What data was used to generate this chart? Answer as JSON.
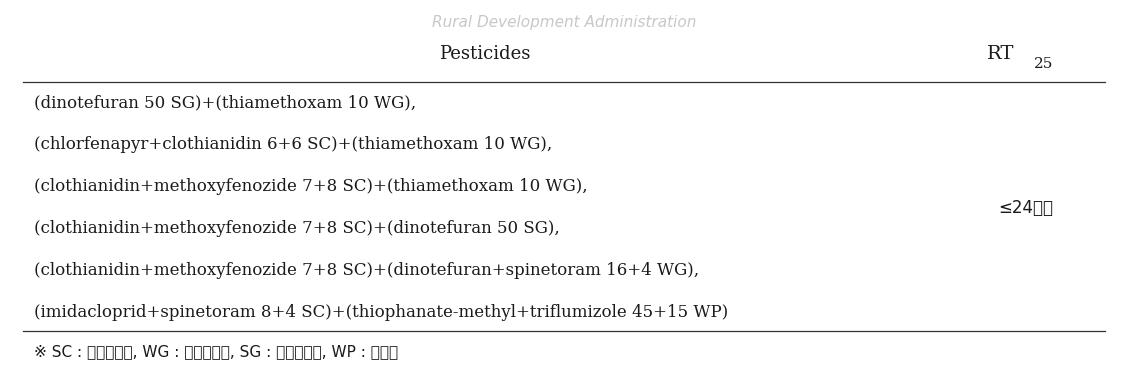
{
  "header_col1": "Pesticides",
  "rt_main": "RT",
  "rt_sub": "25",
  "pesticide_lines": [
    "(dinotefuran 50 SG)+(thiamethoxam 10 WG),",
    "(chlorfenapyr+clothianidin 6+6 SC)+(thiamethoxam 10 WG),",
    "(clothianidin+methoxyfenozide 7+8 SC)+(thiamethoxam 10 WG),",
    "(clothianidin+methoxyfenozide 7+8 SC)+(dinotefuran 50 SG),",
    "(clothianidin+methoxyfenozide 7+8 SC)+(dinotefuran+spinetoram 16+4 WG),",
    "(imidacloprid+spinetoram 8+4 SC)+(thiophanate-methyl+triflumizole 45+15 WP)"
  ],
  "rt_value": "≤24시간",
  "footnote": "※ SC : 액상수화제, WG : 입상수화제, SG : 입상수용제, WP : 수화제",
  "watermark_text": "Rural Development Administration",
  "bg_color": "#ffffff",
  "text_color": "#1a1a1a",
  "line_color": "#333333",
  "font_size_header": 13,
  "font_size_body": 12,
  "font_size_footnote": 11,
  "font_size_watermark": 11,
  "watermark_color": "#c8c8c8"
}
